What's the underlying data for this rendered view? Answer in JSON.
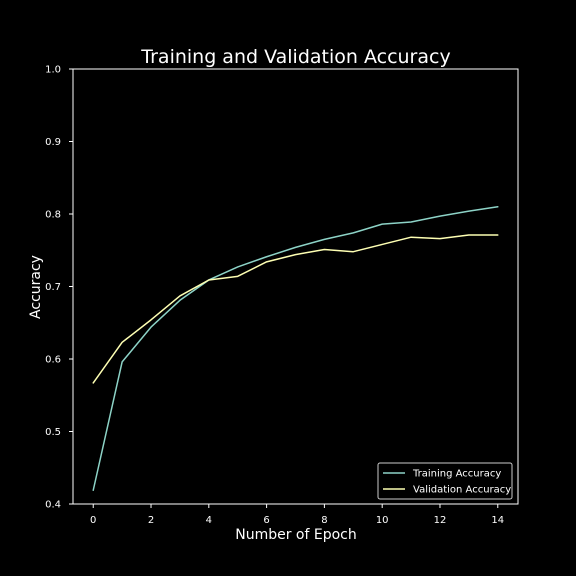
{
  "chart_data": {
    "type": "line",
    "title": "Training and Validation Accuracy",
    "xlabel": "Number of Epoch",
    "ylabel": "Accuracy",
    "xlim": [
      -0.7,
      14.7
    ],
    "ylim": [
      0.4,
      1.0
    ],
    "xticks": [
      0,
      2,
      4,
      6,
      8,
      10,
      12,
      14
    ],
    "yticks": [
      0.4,
      0.5,
      0.6,
      0.7,
      0.8,
      0.9,
      1.0
    ],
    "grid": false,
    "legend_position": "bottom-right",
    "x": [
      0,
      1,
      2,
      3,
      4,
      5,
      6,
      7,
      8,
      9,
      10,
      11,
      12,
      13,
      14
    ],
    "series": [
      {
        "name": "Training Accuracy",
        "color": "#8dd3c7",
        "values": [
          0.419,
          0.596,
          0.644,
          0.681,
          0.709,
          0.727,
          0.741,
          0.754,
          0.765,
          0.774,
          0.786,
          0.789,
          0.797,
          0.804,
          0.81
        ]
      },
      {
        "name": "Validation Accuracy",
        "color": "#feffb3",
        "values": [
          0.567,
          0.623,
          0.654,
          0.687,
          0.709,
          0.714,
          0.734,
          0.744,
          0.751,
          0.748,
          0.758,
          0.768,
          0.766,
          0.771,
          0.771
        ]
      }
    ]
  }
}
